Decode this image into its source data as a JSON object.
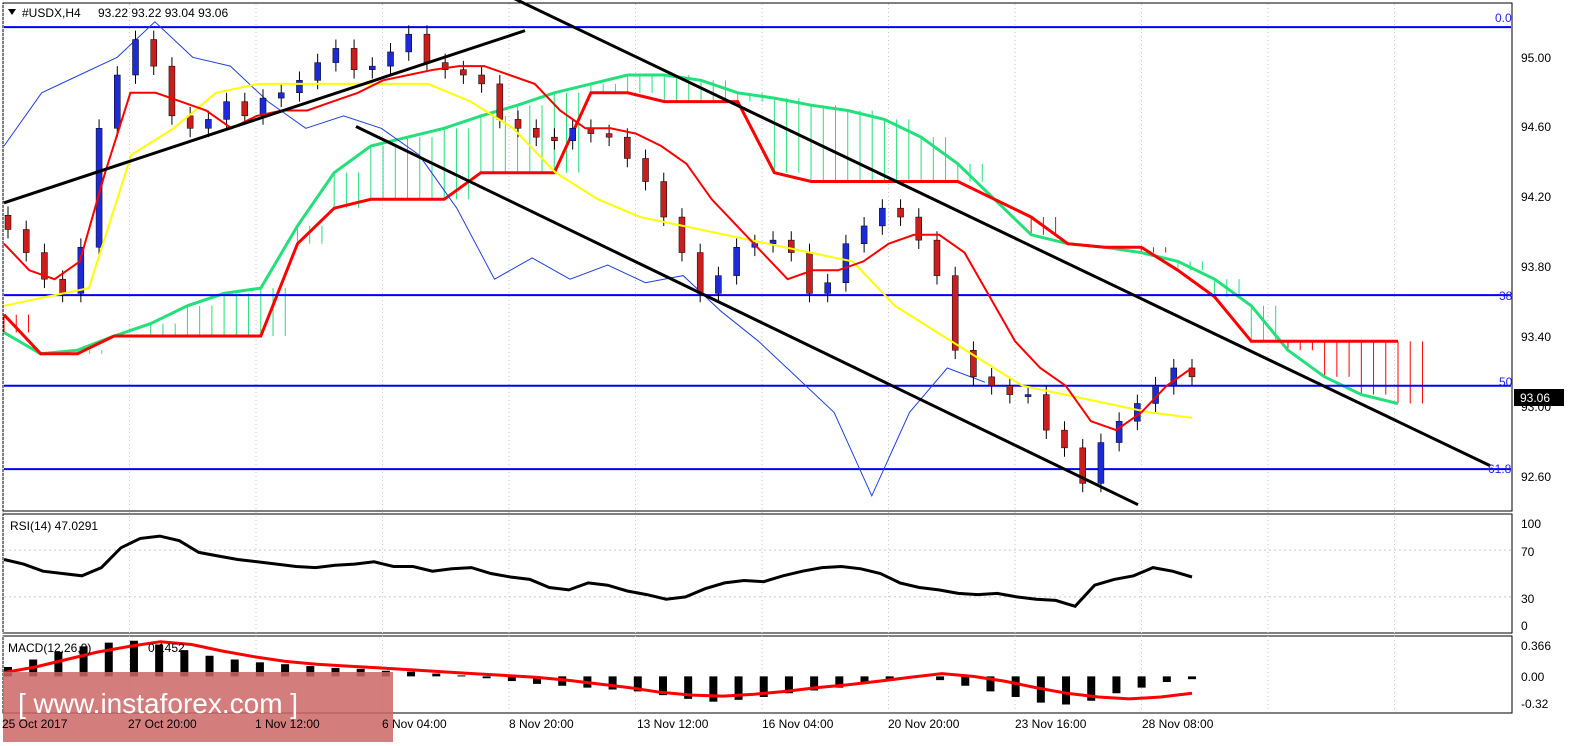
{
  "header": {
    "symbol": "#USDX,H4",
    "ohlc": "93.22 93.22 93.04 93.06"
  },
  "price_badge": "93.06",
  "fib_labels": [
    "0.0",
    "38",
    "50",
    "61.8"
  ],
  "watermark": "[ www.instaforex.com ]",
  "colors": {
    "price_line": "#0000ff",
    "bull": "#1c2bd6",
    "bear": "#c81e1e",
    "tenkan": "#ff0000",
    "kijun": "#ffff00",
    "chikou": "#2040e0",
    "cloud_bull": "#22e07a",
    "cloud_bear": "#ff0000"
  },
  "chart_data": [
    {
      "type": "line",
      "panel": "price",
      "y_ticks": [
        "95.00",
        "94.60",
        "94.20",
        "93.80",
        "93.40",
        "93.00",
        "92.60"
      ],
      "ylim": [
        92.4,
        95.25
      ],
      "x_ticks": [
        "25 Oct 2017",
        "27 Oct 20:00",
        "1 Nov 12:00",
        "6 Nov 04:00",
        "8 Nov 20:00",
        "13 Nov 12:00",
        "16 Nov 04:00",
        "20 Nov 20:00",
        "23 Nov 16:00",
        "28 Nov 08:00"
      ],
      "levels": [
        {
          "label": "0.0",
          "value": 95.12
        },
        {
          "label": "38",
          "value": 93.61
        },
        {
          "label": "50",
          "value": 93.1
        },
        {
          "label": "61.8",
          "value": 92.63
        }
      ],
      "last_price": 93.06,
      "close_series": [
        93.98,
        93.85,
        93.7,
        93.62,
        93.88,
        94.55,
        94.85,
        95.05,
        94.9,
        94.62,
        94.55,
        94.6,
        94.7,
        94.62,
        94.72,
        94.75,
        94.82,
        94.92,
        95.0,
        94.88,
        94.9,
        94.98,
        95.08,
        94.92,
        94.88,
        94.85,
        94.8,
        94.6,
        94.55,
        94.5,
        94.48,
        94.55,
        94.52,
        94.5,
        94.38,
        94.25,
        94.05,
        93.85,
        93.62,
        93.72,
        93.88,
        93.9,
        93.92,
        93.85,
        93.62,
        93.68,
        93.9,
        94.0,
        94.1,
        94.05,
        93.92,
        93.72,
        93.3,
        93.15,
        93.1,
        93.05,
        93.05,
        92.85,
        92.75,
        92.55,
        92.78,
        92.9,
        93.0,
        93.1,
        93.2,
        93.15
      ],
      "tenkan": [
        93.9,
        93.75,
        93.7,
        93.8,
        94.3,
        94.75,
        94.75,
        94.7,
        94.65,
        94.55,
        94.62,
        94.65,
        94.65,
        94.7,
        94.75,
        94.82,
        94.85,
        94.88,
        94.9,
        94.9,
        94.85,
        94.8,
        94.65,
        94.55,
        94.55,
        94.52,
        94.45,
        94.35,
        94.15,
        94.0,
        93.85,
        93.7,
        93.75,
        93.75,
        93.8,
        93.9,
        93.95,
        93.95,
        93.85,
        93.6,
        93.35,
        93.2,
        93.1,
        92.9,
        92.85,
        92.95,
        93.1,
        93.2
      ],
      "kijun": [
        93.55,
        93.6,
        93.65,
        94.4,
        94.55,
        94.75,
        94.8,
        94.8,
        94.8,
        94.8,
        94.8,
        94.7,
        94.55,
        94.3,
        94.15,
        94.05,
        94.0,
        93.95,
        93.9,
        93.85,
        93.8,
        93.55,
        93.4,
        93.25,
        93.1,
        93.05,
        93.0,
        92.95,
        92.92
      ],
      "chikou": [
        94.45,
        94.75,
        94.85,
        94.95,
        95.15,
        94.95,
        94.9,
        94.7,
        94.55,
        94.62,
        94.55,
        94.4,
        94.1,
        93.7,
        93.82,
        93.7,
        93.78,
        93.68,
        93.72,
        93.52,
        93.35,
        93.15,
        92.95,
        92.48,
        92.95,
        93.2,
        93.12
      ],
      "cloud": {
        "span_a": [
          93.4,
          93.28,
          93.3,
          93.38,
          93.45,
          93.55,
          93.62,
          93.65,
          94.0,
          94.3,
          94.45,
          94.5,
          94.55,
          94.62,
          94.68,
          94.75,
          94.8,
          94.85,
          94.85,
          94.82,
          94.75,
          94.72,
          94.68,
          94.65,
          94.6,
          94.5,
          94.35,
          94.15,
          93.95,
          93.9,
          93.88,
          93.85,
          93.8,
          93.7,
          93.55,
          93.3,
          93.15,
          93.05,
          93.0
        ],
        "span_b": [
          93.5,
          93.28,
          93.28,
          93.38,
          93.38,
          93.38,
          93.38,
          93.38,
          93.9,
          94.1,
          94.15,
          94.15,
          94.15,
          94.3,
          94.3,
          94.3,
          94.75,
          94.75,
          94.7,
          94.7,
          94.7,
          94.3,
          94.25,
          94.25,
          94.25,
          94.25,
          94.25,
          94.15,
          94.05,
          93.9,
          93.88,
          93.88,
          93.75,
          93.6,
          93.35,
          93.35,
          93.35,
          93.35,
          93.35
        ]
      }
    },
    {
      "type": "line",
      "panel": "RSI",
      "title": "RSI(14) 47.0291",
      "y_ticks": [
        "100",
        "70",
        "30",
        "0"
      ],
      "ylim": [
        0,
        100
      ],
      "values": [
        62,
        58,
        52,
        50,
        48,
        55,
        72,
        80,
        82,
        78,
        68,
        65,
        62,
        60,
        58,
        56,
        55,
        57,
        58,
        60,
        56,
        56,
        52,
        54,
        55,
        50,
        47,
        45,
        38,
        36,
        42,
        40,
        35,
        32,
        28,
        30,
        37,
        42,
        44,
        43,
        48,
        52,
        55,
        56,
        54,
        50,
        42,
        38,
        36,
        33,
        32,
        33,
        30,
        28,
        27,
        22,
        40,
        45,
        48,
        55,
        52,
        47
      ]
    },
    {
      "type": "bar",
      "panel": "MACD",
      "title": "MACD(12,26,9)",
      "series_label": "0.1452",
      "y_ticks": [
        "0.366",
        "0.00",
        "-0.32"
      ],
      "ylim": [
        -0.38,
        0.42
      ],
      "histogram": [
        0.1,
        0.18,
        0.26,
        0.32,
        0.36,
        0.38,
        0.34,
        0.28,
        0.22,
        0.18,
        0.15,
        0.13,
        0.11,
        0.09,
        0.08,
        0.06,
        0.05,
        0.03,
        0.01,
        -0.02,
        -0.05,
        -0.08,
        -0.1,
        -0.12,
        -0.14,
        -0.16,
        -0.2,
        -0.24,
        -0.27,
        -0.25,
        -0.22,
        -0.18,
        -0.15,
        -0.12,
        -0.08,
        -0.04,
        0.0,
        -0.04,
        -0.1,
        -0.16,
        -0.22,
        -0.28,
        -0.3,
        -0.26,
        -0.18,
        -0.12,
        -0.06,
        -0.03
      ],
      "signal": [
        0.04,
        0.1,
        0.18,
        0.26,
        0.32,
        0.37,
        0.34,
        0.27,
        0.21,
        0.16,
        0.13,
        0.11,
        0.09,
        0.07,
        0.05,
        0.03,
        0.01,
        -0.01,
        -0.04,
        -0.08,
        -0.12,
        -0.17,
        -0.2,
        -0.21,
        -0.19,
        -0.16,
        -0.12,
        -0.09,
        -0.05,
        -0.01,
        0.03,
        0.0,
        -0.05,
        -0.12,
        -0.18,
        -0.22,
        -0.24,
        -0.22,
        -0.18
      ]
    }
  ]
}
